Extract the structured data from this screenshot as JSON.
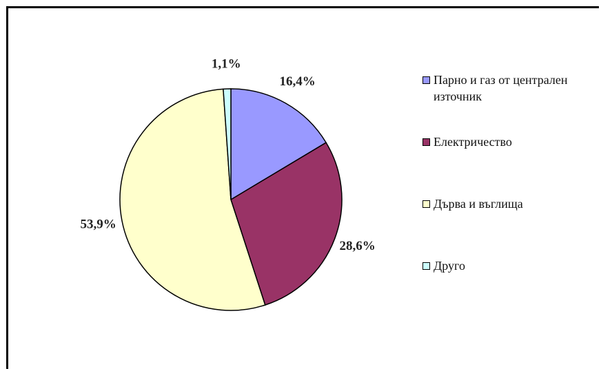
{
  "chart_data": {
    "type": "pie",
    "categories": [
      "Парно  и газ от централен източник",
      "Електричество",
      "Дърва и въглища",
      "Друго"
    ],
    "values": [
      16.4,
      28.6,
      53.9,
      1.1
    ],
    "value_labels": [
      "16,4%",
      "28,6%",
      "53,9%",
      "1,1%"
    ],
    "colors": [
      "#9999ff",
      "#993366",
      "#ffffcc",
      "#ccffff"
    ],
    "legend": "right"
  }
}
